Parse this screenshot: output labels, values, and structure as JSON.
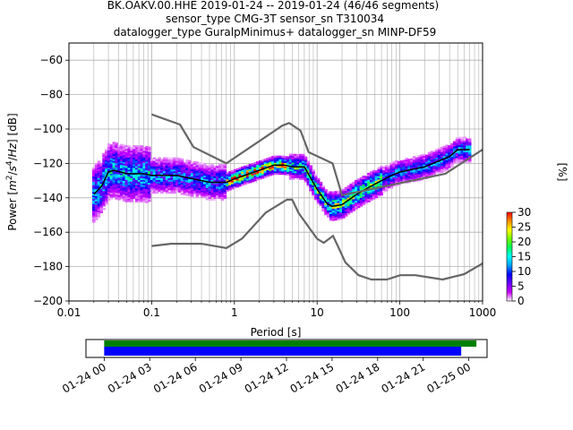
{
  "title": {
    "line1": "BK.OAKV.00.HHE   2019-01-24 -- 2019-01-24  (46/46 segments)",
    "line2": "sensor_type CMG-3T sensor_sn T310034",
    "line3": "datalogger_type GuralpMinimus+ datalogger_sn MINP-DF59"
  },
  "chart_data": [
    {
      "type": "heatmap",
      "xlabel": "Period [s]",
      "ylabel": "Power [m²/s⁴/Hz] [dB]",
      "x_scale": "log",
      "xlim": [
        0.01,
        1000
      ],
      "ylim": [
        -200,
        -50
      ],
      "x_ticks": [
        0.01,
        0.1,
        1,
        10,
        100,
        1000
      ],
      "x_tick_labels": [
        "0.01",
        "0.1",
        "1",
        "10",
        "100",
        "1000"
      ],
      "y_ticks": [
        -200,
        -180,
        -160,
        -140,
        -120,
        -100,
        -80,
        -60
      ],
      "y_tick_labels": [
        "−200",
        "−180",
        "−160",
        "−140",
        "−120",
        "−100",
        "−80",
        "−60"
      ],
      "grid": true,
      "colorbar": {
        "label": "[%]",
        "range": [
          0,
          30
        ],
        "ticks": [
          0,
          5,
          10,
          15,
          20,
          25,
          30
        ],
        "tick_labels": [
          "0",
          "5",
          "10",
          "15",
          "20",
          "25",
          "30"
        ],
        "colors": [
          "#ffffff",
          "#c800ff",
          "#6a00ff",
          "#0000ff",
          "#00a0ff",
          "#00ffff",
          "#00ff60",
          "#70ff00",
          "#ffff00",
          "#ff9000",
          "#ff0000"
        ]
      },
      "series": [
        {
          "name": "",
          "role": "mode",
          "color": "#000000",
          "x": [
            0.02,
            0.025,
            0.03,
            0.035,
            0.05,
            0.08,
            0.1,
            0.2,
            0.5,
            0.8,
            1.0,
            2.0,
            3.0,
            4.0,
            5.0,
            7.0,
            10.0,
            13.0,
            15.0,
            20.0,
            30.0,
            50.0,
            80.0,
            100.0,
            200.0,
            400.0,
            500.0,
            600.0,
            700.0
          ],
          "y": [
            -138,
            -133,
            -125,
            -124,
            -126,
            -126,
            -127,
            -127,
            -131,
            -131,
            -129,
            -124,
            -121,
            -121,
            -122,
            -122,
            -135,
            -143,
            -145,
            -144,
            -138,
            -132,
            -127,
            -125,
            -122,
            -116,
            -112,
            -112,
            -112
          ]
        },
        {
          "name": "",
          "role": "noise-model-high",
          "color": "#666666",
          "x": [
            0.1,
            0.22,
            0.32,
            0.8,
            3.8,
            4.6,
            6.3,
            7.9,
            15.4,
            20.0,
            354.8,
            1000.0
          ],
          "y": [
            -91.5,
            -97.4,
            -110.5,
            -120.0,
            -98.0,
            -96.5,
            -101.0,
            -113.5,
            -120.0,
            -138.5,
            -126.0,
            -112.0
          ]
        },
        {
          "name": "",
          "role": "noise-model-low",
          "color": "#666666",
          "x": [
            0.1,
            0.17,
            0.4,
            0.8,
            1.24,
            2.4,
            4.3,
            5.0,
            6.0,
            10.0,
            12.0,
            15.6,
            21.9,
            31.6,
            45.0,
            70.0,
            101.0,
            154.0,
            328.0,
            600.0,
            1000.0
          ],
          "y": [
            -168.0,
            -166.7,
            -166.7,
            -169.2,
            -163.7,
            -148.6,
            -141.1,
            -141.1,
            -149.0,
            -163.8,
            -166.2,
            -162.1,
            -177.5,
            -185.0,
            -187.5,
            -187.5,
            -185.0,
            -185.0,
            -187.5,
            -184.4,
            -178.2
          ]
        }
      ],
      "density_bands": [
        {
          "x_range": [
            0.02,
            0.1
          ],
          "y_center": -124,
          "y_spread": 16,
          "peak_percent": 14
        },
        {
          "x_range": [
            0.1,
            0.8
          ],
          "y_center": -127,
          "y_spread": 10,
          "peak_percent": 12
        },
        {
          "x_range": [
            0.8,
            4.5
          ],
          "y_center": -125,
          "y_spread": 5,
          "peak_percent": 28
        },
        {
          "x_range": [
            4.5,
            14
          ],
          "y_center": -132,
          "y_spread": 7,
          "peak_percent": 18
        },
        {
          "x_range": [
            14,
            60
          ],
          "y_center": -140,
          "y_spread": 8,
          "peak_percent": 20
        },
        {
          "x_range": [
            60,
            700
          ],
          "y_center": -123,
          "y_spread": 7,
          "peak_percent": 12
        }
      ]
    },
    {
      "type": "bar",
      "role": "data-coverage",
      "x_tick_labels": [
        "01-24 00",
        "01-24 03",
        "01-24 06",
        "01-24 09",
        "01-24 12",
        "01-24 15",
        "01-24 18",
        "01-24 21",
        "01-25 00"
      ],
      "xlim_hours": [
        -1.2,
        25.2
      ],
      "series": [
        {
          "name": "",
          "color": "#008000",
          "start_hour": 0.0,
          "end_hour": 24.5
        },
        {
          "name": "",
          "color": "#0000ff",
          "start_hour": 0.0,
          "end_hour": 23.5
        }
      ]
    }
  ]
}
